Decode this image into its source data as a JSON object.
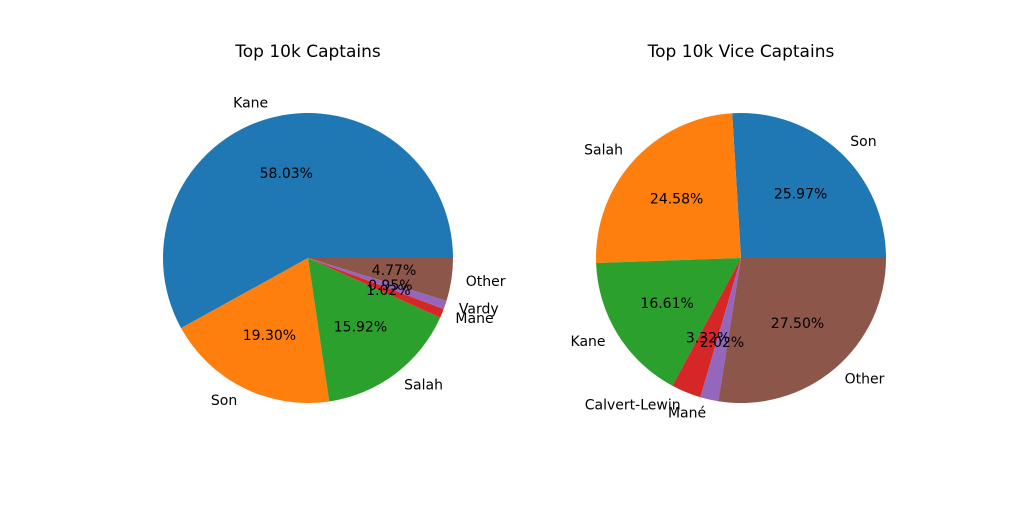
{
  "chart_data": [
    {
      "type": "pie",
      "title": "Top 10k Captains",
      "labels": [
        "Kane",
        "Son",
        "Salah",
        "Mane",
        "Vardy",
        "Other"
      ],
      "values": [
        58.03,
        19.3,
        15.92,
        1.02,
        0.95,
        4.77
      ],
      "pct_labels": [
        "58.03%",
        "19.30%",
        "15.92%",
        "1.02%",
        "0.95%",
        "4.77%"
      ],
      "colors": [
        "#1f77b4",
        "#ff7f0e",
        "#2ca02c",
        "#d62728",
        "#9467bd",
        "#8c564b"
      ],
      "start_angle_deg": 0,
      "direction": "counterclockwise"
    },
    {
      "type": "pie",
      "title": "Top 10k Vice Captains",
      "labels": [
        "Son",
        "Salah",
        "Kane",
        "Calvert-Lewin",
        "Mané",
        "Other"
      ],
      "values": [
        25.97,
        24.58,
        16.61,
        3.32,
        2.02,
        27.5
      ],
      "pct_labels": [
        "25.97%",
        "24.58%",
        "16.61%",
        "3.32%",
        "2.02%",
        "27.50%"
      ],
      "colors": [
        "#1f77b4",
        "#ff7f0e",
        "#2ca02c",
        "#d62728",
        "#9467bd",
        "#8c564b"
      ],
      "start_angle_deg": 0,
      "direction": "counterclockwise"
    }
  ]
}
